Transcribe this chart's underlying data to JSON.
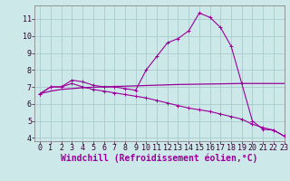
{
  "background_color": "#cce8e8",
  "grid_color": "#aacccc",
  "line_color": "#990099",
  "xlim": [
    -0.5,
    23
  ],
  "ylim": [
    3.8,
    11.8
  ],
  "xlabel": "Windchill (Refroidissement éolien,°C)",
  "yticks": [
    4,
    5,
    6,
    7,
    8,
    9,
    10,
    11
  ],
  "xticks": [
    0,
    1,
    2,
    3,
    4,
    5,
    6,
    7,
    8,
    9,
    10,
    11,
    12,
    13,
    14,
    15,
    16,
    17,
    18,
    19,
    20,
    21,
    22,
    23
  ],
  "curve1_x": [
    0,
    1,
    2,
    3,
    4,
    5,
    6,
    7,
    8,
    9,
    10,
    11,
    12,
    13,
    14,
    15,
    16,
    17,
    18,
    19,
    20,
    21,
    22,
    23
  ],
  "curve1_y": [
    6.6,
    7.0,
    7.0,
    7.4,
    7.3,
    7.1,
    7.0,
    7.0,
    6.9,
    6.8,
    8.0,
    8.8,
    9.6,
    9.85,
    10.3,
    11.35,
    11.1,
    10.5,
    9.4,
    7.2,
    5.0,
    4.5,
    4.45,
    4.1
  ],
  "curve2_x": [
    0,
    1,
    2,
    3,
    4,
    5,
    6,
    7,
    8,
    9,
    10,
    11,
    12,
    13,
    14,
    15,
    16,
    17,
    18,
    19,
    20,
    21,
    22,
    23
  ],
  "curve2_y": [
    6.6,
    7.0,
    7.0,
    7.2,
    7.0,
    6.85,
    6.75,
    6.65,
    6.55,
    6.45,
    6.35,
    6.2,
    6.05,
    5.9,
    5.75,
    5.65,
    5.55,
    5.4,
    5.25,
    5.1,
    4.8,
    4.6,
    4.45,
    4.1
  ],
  "curve3_x": [
    0,
    1,
    2,
    3,
    4,
    5,
    6,
    7,
    8,
    9,
    10,
    11,
    12,
    13,
    14,
    15,
    16,
    17,
    18,
    19,
    20,
    21,
    22,
    23
  ],
  "curve3_y": [
    6.6,
    6.75,
    6.85,
    6.9,
    6.95,
    6.98,
    7.0,
    7.02,
    7.04,
    7.06,
    7.08,
    7.1,
    7.12,
    7.14,
    7.15,
    7.16,
    7.17,
    7.18,
    7.19,
    7.2,
    7.2,
    7.2,
    7.2,
    7.2
  ],
  "tick_fontsize": 6,
  "xlabel_fontsize": 7
}
